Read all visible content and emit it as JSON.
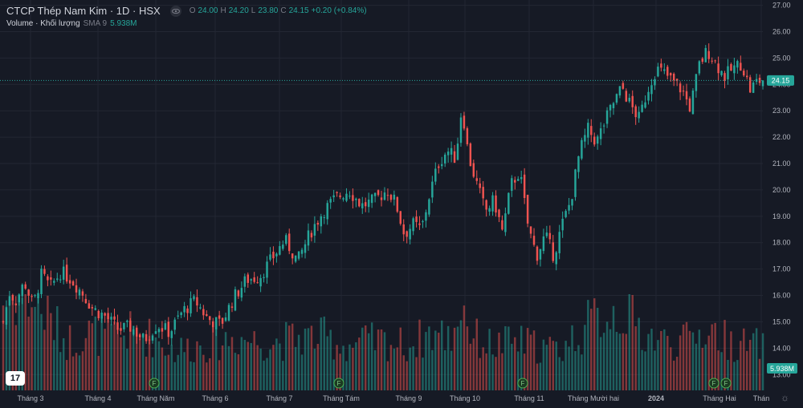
{
  "header": {
    "title": "CTCP Thép Nam Kim · 1D · HSX",
    "open_label": "O",
    "open": "24.00",
    "high_label": "H",
    "high": "24.20",
    "low_label": "L",
    "low": "23.80",
    "close_label": "C",
    "close": "24.15",
    "change": "+0.20 (+0.84%)"
  },
  "volume_legend": {
    "label": "Volume · Khối lượng",
    "sma": "SMA 9",
    "value": "5.938M"
  },
  "logo_text": "17",
  "price_tag": "24.15",
  "volume_tag": "5.938M",
  "event_marker_label": "F",
  "colors": {
    "up": "#26a69a",
    "down": "#ef5350",
    "background": "#161a25",
    "grid": "#232733",
    "axis_text": "#b2b5be",
    "price_line": "#26a69a"
  },
  "chart_data": {
    "type": "candlestick",
    "y_axis": {
      "side": "right",
      "min": 12.4,
      "max": 27.2,
      "ticks": [
        "13.00",
        "14.00",
        "15.00",
        "16.00",
        "17.00",
        "18.00",
        "19.00",
        "20.00",
        "21.00",
        "22.00",
        "23.00",
        "24.00",
        "25.00",
        "26.00",
        "27.00"
      ]
    },
    "x_axis_labels": [
      "Tháng 3",
      "Tháng 4",
      "Tháng Năm",
      "Tháng 6",
      "Tháng 7",
      "Tháng Tám",
      "Tháng 9",
      "Tháng 10",
      "Tháng 11",
      "Tháng Mười hai",
      "2024",
      "Tháng Hai",
      "Thán"
    ],
    "last_price": 24.15,
    "event_markers": [
      "F",
      "F",
      "F",
      "F",
      "F"
    ],
    "price_path": [
      [
        0,
        15.0
      ],
      [
        3,
        16.1
      ],
      [
        6,
        15.8
      ],
      [
        10,
        16.5
      ],
      [
        14,
        15.6
      ],
      [
        18,
        16.8
      ],
      [
        22,
        16.3
      ],
      [
        27,
        16.9
      ],
      [
        32,
        16.6
      ],
      [
        37,
        16.1
      ],
      [
        42,
        15.5
      ],
      [
        48,
        15.2
      ],
      [
        54,
        14.7
      ],
      [
        60,
        14.8
      ],
      [
        66,
        14.3
      ],
      [
        72,
        14.9
      ],
      [
        78,
        14.6
      ],
      [
        84,
        15.4
      ],
      [
        90,
        15.8
      ],
      [
        96,
        15.1
      ],
      [
        102,
        14.9
      ],
      [
        108,
        15.9
      ],
      [
        114,
        16.6
      ],
      [
        120,
        16.7
      ],
      [
        126,
        17.4
      ],
      [
        132,
        18.1
      ],
      [
        138,
        17.3
      ],
      [
        144,
        18.4
      ],
      [
        150,
        19.2
      ],
      [
        156,
        19.7
      ],
      [
        162,
        20.0
      ],
      [
        168,
        19.4
      ],
      [
        174,
        19.6
      ],
      [
        180,
        20.0
      ],
      [
        184,
        19.5
      ],
      [
        188,
        18.3
      ],
      [
        192,
        18.7
      ],
      [
        196,
        18.5
      ],
      [
        200,
        19.9
      ],
      [
        204,
        21.0
      ],
      [
        208,
        21.5
      ],
      [
        212,
        21.2
      ],
      [
        215,
        23.2
      ],
      [
        218,
        21.3
      ],
      [
        222,
        20.2
      ],
      [
        226,
        19.2
      ],
      [
        230,
        19.6
      ],
      [
        234,
        18.4
      ],
      [
        238,
        20.2
      ],
      [
        242,
        20.7
      ],
      [
        246,
        18.6
      ],
      [
        250,
        17.5
      ],
      [
        254,
        18.3
      ],
      [
        258,
        17.5
      ],
      [
        262,
        18.7
      ],
      [
        266,
        19.6
      ],
      [
        270,
        21.4
      ],
      [
        274,
        22.3
      ],
      [
        278,
        21.8
      ],
      [
        282,
        22.6
      ],
      [
        286,
        23.3
      ],
      [
        290,
        23.9
      ],
      [
        294,
        23.2
      ],
      [
        298,
        22.7
      ],
      [
        302,
        23.8
      ],
      [
        306,
        24.6
      ],
      [
        310,
        24.4
      ],
      [
        314,
        24.1
      ],
      [
        318,
        23.8
      ],
      [
        322,
        23.1
      ],
      [
        326,
        24.7
      ],
      [
        330,
        25.3
      ],
      [
        334,
        24.8
      ],
      [
        338,
        24.3
      ],
      [
        342,
        24.6
      ],
      [
        346,
        24.8
      ],
      [
        350,
        23.8
      ],
      [
        353,
        24.1
      ],
      [
        356,
        24.15
      ]
    ],
    "volume_path": [
      [
        0,
        1.0
      ],
      [
        10,
        1.1
      ],
      [
        20,
        0.85
      ],
      [
        30,
        0.55
      ],
      [
        40,
        0.65
      ],
      [
        50,
        0.6
      ],
      [
        60,
        0.65
      ],
      [
        70,
        0.6
      ],
      [
        80,
        0.45
      ],
      [
        90,
        0.5
      ],
      [
        100,
        0.55
      ],
      [
        110,
        0.6
      ],
      [
        120,
        0.55
      ],
      [
        130,
        0.55
      ],
      [
        140,
        0.6
      ],
      [
        150,
        0.6
      ],
      [
        160,
        0.5
      ],
      [
        170,
        0.55
      ],
      [
        180,
        0.55
      ],
      [
        190,
        0.5
      ],
      [
        200,
        0.65
      ],
      [
        210,
        0.6
      ],
      [
        215,
        1.0
      ],
      [
        220,
        0.6
      ],
      [
        230,
        0.5
      ],
      [
        240,
        0.55
      ],
      [
        250,
        0.5
      ],
      [
        260,
        0.45
      ],
      [
        270,
        0.65
      ],
      [
        280,
        0.85
      ],
      [
        290,
        0.9
      ],
      [
        300,
        0.65
      ],
      [
        310,
        0.55
      ],
      [
        320,
        0.55
      ],
      [
        330,
        0.7
      ],
      [
        340,
        0.55
      ],
      [
        350,
        0.5
      ],
      [
        356,
        0.52
      ]
    ]
  }
}
